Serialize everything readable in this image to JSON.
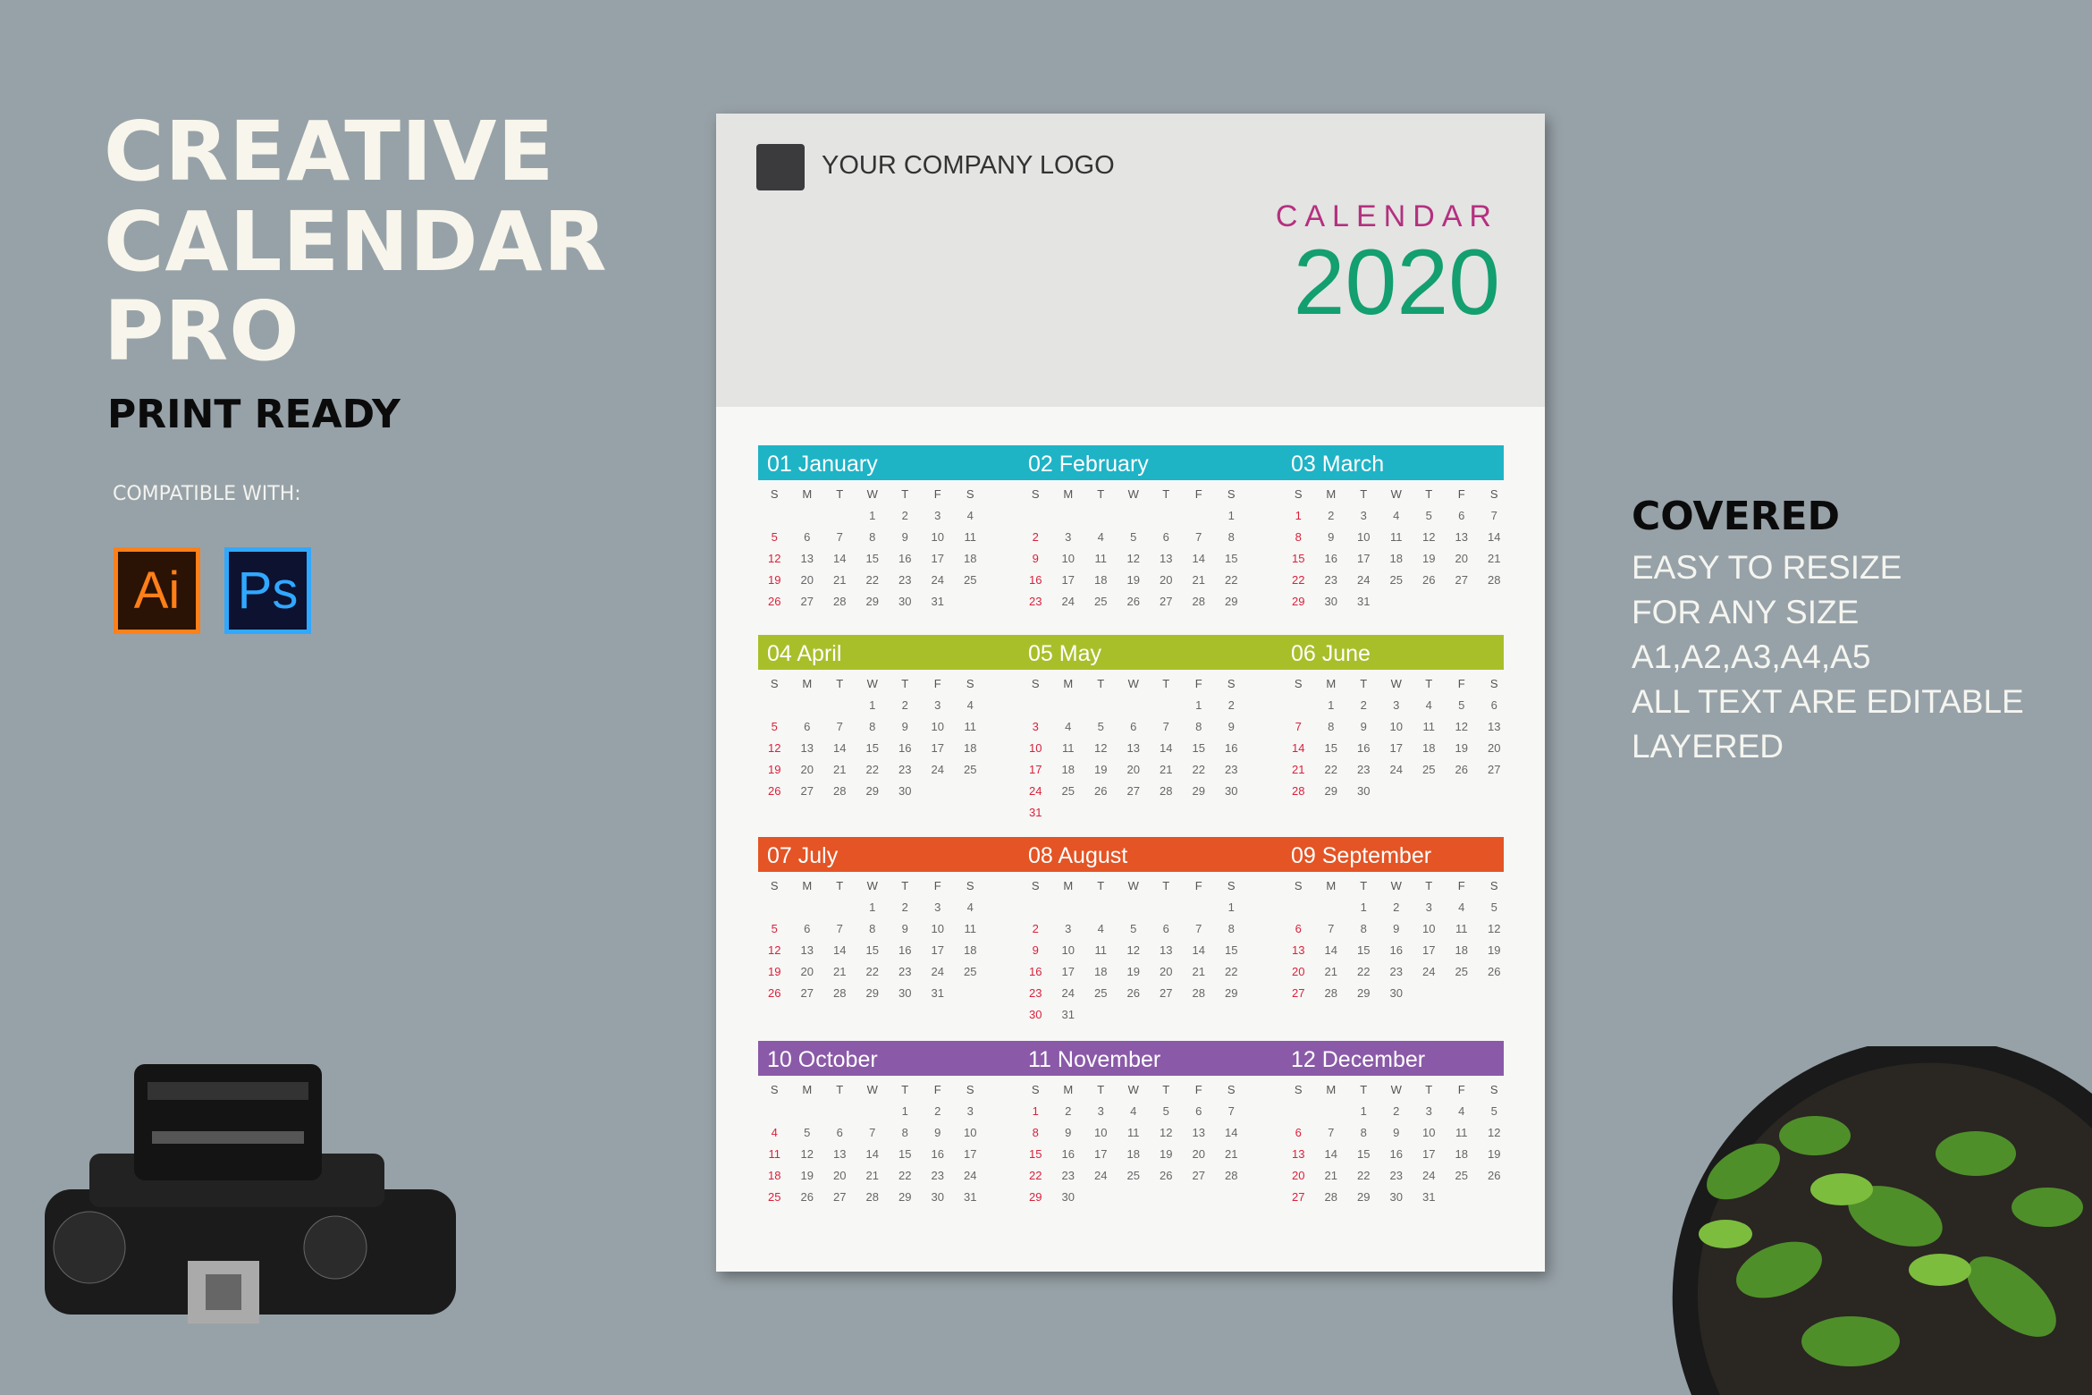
{
  "left": {
    "title_lines": [
      "CREATIVE",
      "CALENDAR",
      "PRO"
    ],
    "subtitle": "PRINT READY",
    "compatible": "COMPATIBLE WITH:",
    "apps": [
      {
        "label": "Ai",
        "color": "#ff7f18",
        "bg": "#2a1204"
      },
      {
        "label": "Ps",
        "color": "#31a8ff",
        "bg": "#0c1230"
      }
    ]
  },
  "right": {
    "heading": "COVERED",
    "lines": [
      "EASY TO RESIZE",
      "FOR ANY SIZE",
      "A1,A2,A3,A4,A5",
      "ALL TEXT ARE EDITABLE",
      "LAYERED"
    ]
  },
  "poster": {
    "logo_text": "YOUR COMPANY LOGO",
    "calendar_label": "CALENDAR",
    "year": "2020",
    "weekdays": [
      "S",
      "M",
      "T",
      "W",
      "T",
      "F",
      "S"
    ],
    "row_colors": [
      "#1fb3c6",
      "#a9bf2a",
      "#e45425",
      "#8a5aa8"
    ],
    "months": [
      {
        "label": "01  January",
        "start": 3,
        "days": 31
      },
      {
        "label": "02  February",
        "start": 6,
        "days": 29
      },
      {
        "label": "03  March",
        "start": 0,
        "days": 31
      },
      {
        "label": "04  April",
        "start": 3,
        "days": 30
      },
      {
        "label": "05  May",
        "start": 5,
        "days": 31
      },
      {
        "label": "06  June",
        "start": 1,
        "days": 30
      },
      {
        "label": "07  July",
        "start": 3,
        "days": 31
      },
      {
        "label": "08  August",
        "start": 6,
        "days": 31
      },
      {
        "label": "09  September",
        "start": 2,
        "days": 30
      },
      {
        "label": "10  October",
        "start": 4,
        "days": 31
      },
      {
        "label": "11  November",
        "start": 0,
        "days": 30
      },
      {
        "label": "12  December",
        "start": 2,
        "days": 31
      }
    ]
  }
}
